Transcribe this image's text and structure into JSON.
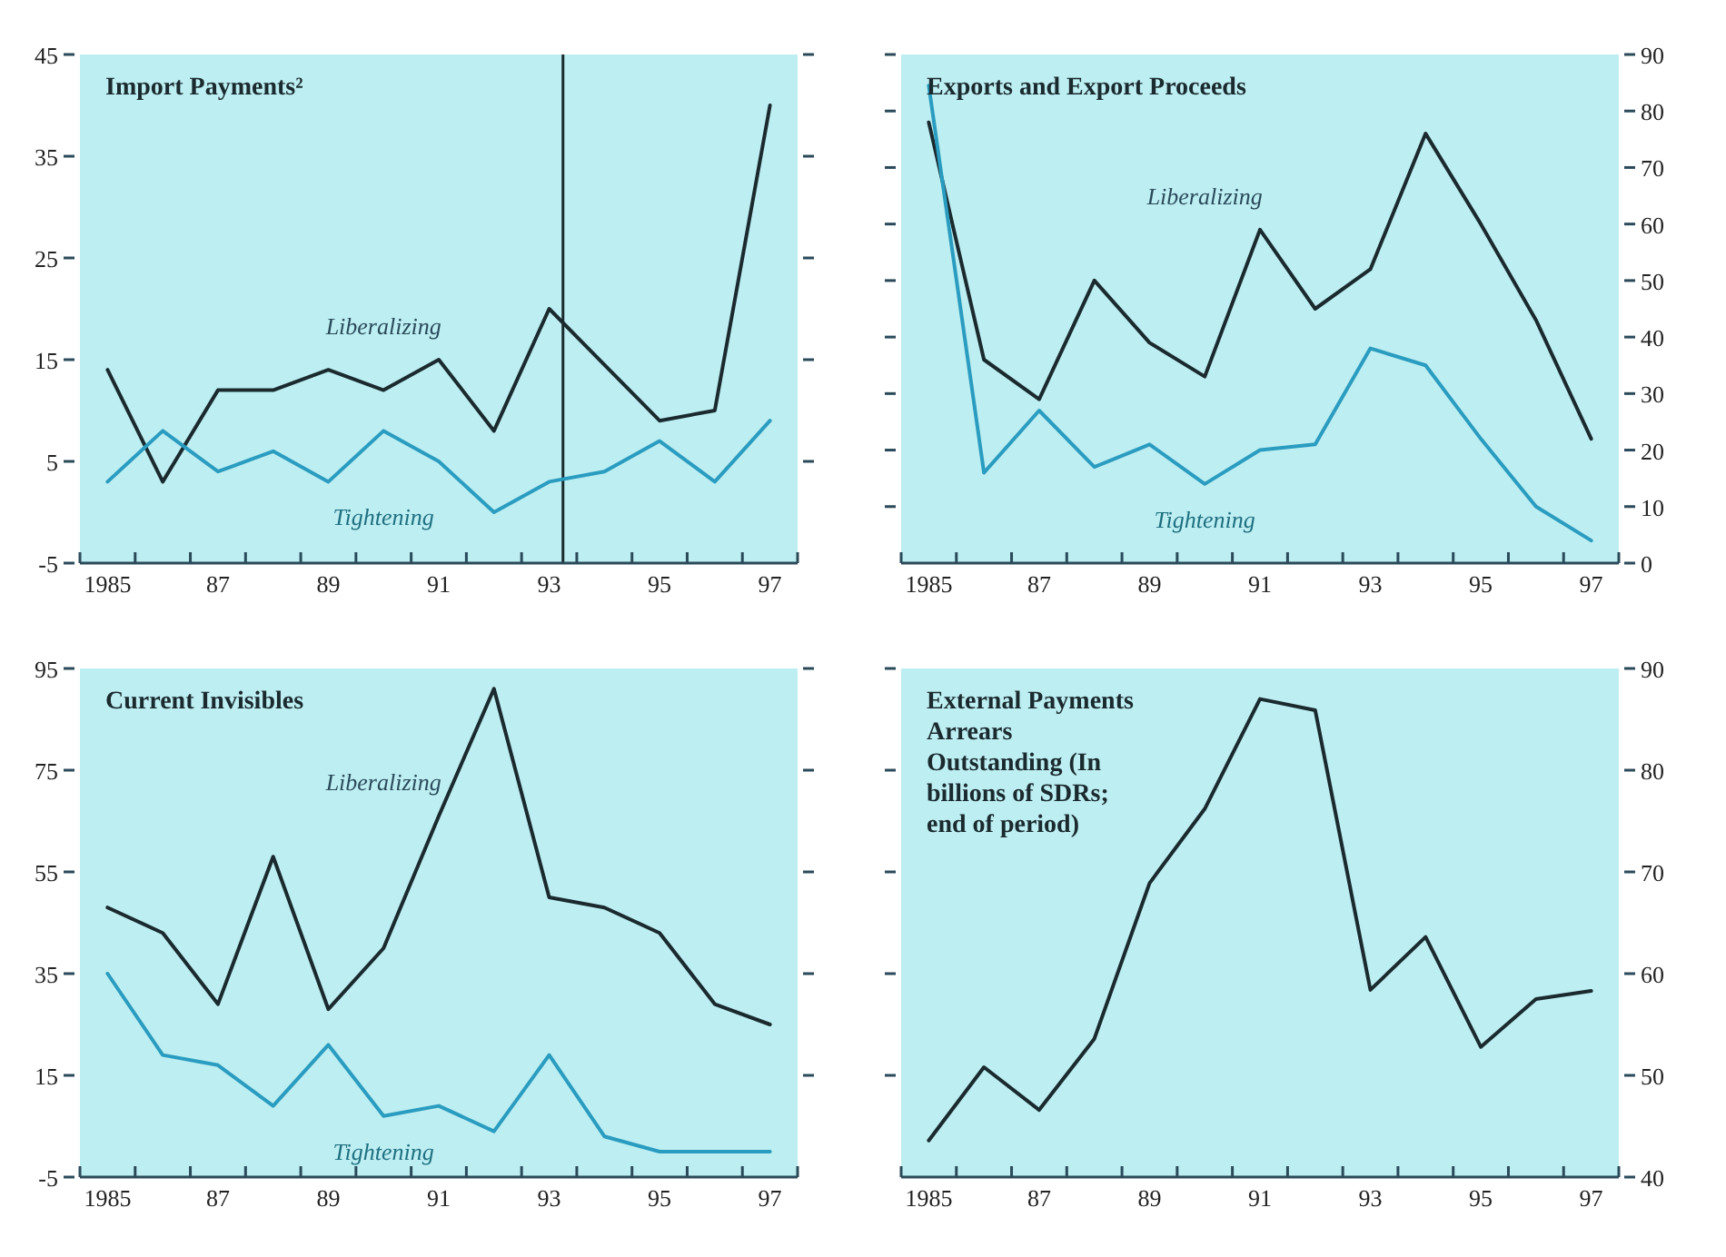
{
  "chart_data": [
    {
      "type": "line",
      "title": "Import Payments²",
      "x": [
        1985,
        1986,
        1987,
        1988,
        1989,
        1990,
        1991,
        1992,
        1993,
        1994,
        1995,
        1996,
        1997
      ],
      "xlim": [
        1984.5,
        1997.5
      ],
      "xticks": [
        {
          "value": 1984.5,
          "label": null
        },
        {
          "value": 1985.5,
          "label": null
        },
        {
          "value": 1986.5,
          "label": null
        },
        {
          "value": 1987.5,
          "label": null
        },
        {
          "value": 1988.5,
          "label": null
        },
        {
          "value": 1989.5,
          "label": null
        },
        {
          "value": 1990.5,
          "label": null
        },
        {
          "value": 1991.5,
          "label": null
        },
        {
          "value": 1992.5,
          "label": null
        },
        {
          "value": 1993.5,
          "label": null
        },
        {
          "value": 1994.5,
          "label": null
        },
        {
          "value": 1995.5,
          "label": null
        },
        {
          "value": 1996.5,
          "label": null
        },
        {
          "value": 1997.5,
          "label": null
        },
        {
          "value": 1985,
          "label": "1985"
        },
        {
          "value": 1987,
          "label": "87"
        },
        {
          "value": 1989,
          "label": "89"
        },
        {
          "value": 1991,
          "label": "91"
        },
        {
          "value": 1993,
          "label": "93"
        },
        {
          "value": 1995,
          "label": "95"
        },
        {
          "value": 1997,
          "label": "97"
        }
      ],
      "ylim": [
        -5,
        45
      ],
      "yticks": [
        -5,
        5,
        15,
        25,
        35,
        45
      ],
      "ref_lines": [
        {
          "axis": "x",
          "value": 1993.25,
          "color": "#1a2a2e"
        }
      ],
      "series": [
        {
          "name": "Liberalizing",
          "color": "#1a2a2e",
          "values": [
            14,
            3,
            12,
            12,
            14,
            12,
            15,
            8,
            20,
            14.5,
            9,
            10,
            40
          ]
        },
        {
          "name": "Tightening",
          "color": "#2a9cc0",
          "values": [
            3,
            8,
            4,
            6,
            3,
            8,
            5,
            0,
            3,
            4,
            7,
            3,
            9
          ]
        }
      ]
    },
    {
      "type": "line",
      "title": "Exports and Export Proceeds",
      "x": [
        1985,
        1986,
        1987,
        1988,
        1989,
        1990,
        1991,
        1992,
        1993,
        1994,
        1995,
        1996,
        1997
      ],
      "xlim": [
        1984.5,
        1997.5
      ],
      "xticks": [
        {
          "value": 1984.5,
          "label": null
        },
        {
          "value": 1985.5,
          "label": null
        },
        {
          "value": 1986.5,
          "label": null
        },
        {
          "value": 1987.5,
          "label": null
        },
        {
          "value": 1988.5,
          "label": null
        },
        {
          "value": 1989.5,
          "label": null
        },
        {
          "value": 1990.5,
          "label": null
        },
        {
          "value": 1991.5,
          "label": null
        },
        {
          "value": 1992.5,
          "label": null
        },
        {
          "value": 1993.5,
          "label": null
        },
        {
          "value": 1994.5,
          "label": null
        },
        {
          "value": 1995.5,
          "label": null
        },
        {
          "value": 1996.5,
          "label": null
        },
        {
          "value": 1997.5,
          "label": null
        },
        {
          "value": 1985,
          "label": "1985"
        },
        {
          "value": 1987,
          "label": "87"
        },
        {
          "value": 1989,
          "label": "89"
        },
        {
          "value": 1991,
          "label": "91"
        },
        {
          "value": 1993,
          "label": "93"
        },
        {
          "value": 1995,
          "label": "95"
        },
        {
          "value": 1997,
          "label": "97"
        }
      ],
      "y2lim": [
        0,
        90
      ],
      "y2ticks": [
        0,
        10,
        20,
        30,
        40,
        50,
        60,
        70,
        80,
        90
      ],
      "series": [
        {
          "name": "Liberalizing",
          "color": "#1a2a2e",
          "axis": "y2",
          "values": [
            78,
            36,
            29,
            50,
            39,
            33,
            59,
            45,
            52,
            76,
            60,
            43,
            22
          ]
        },
        {
          "name": "Tightening",
          "color": "#2a9cc0",
          "axis": "y2",
          "values": [
            84.5,
            16,
            27,
            17,
            21,
            14,
            20,
            21,
            38,
            35,
            22,
            10,
            4
          ]
        }
      ]
    },
    {
      "type": "line",
      "title": "Current Invisibles",
      "x": [
        1985,
        1986,
        1987,
        1988,
        1989,
        1990,
        1991,
        1992,
        1993,
        1994,
        1995,
        1996,
        1997
      ],
      "xlim": [
        1984.5,
        1997.5
      ],
      "xticks": [
        {
          "value": 1984.5,
          "label": null
        },
        {
          "value": 1985.5,
          "label": null
        },
        {
          "value": 1986.5,
          "label": null
        },
        {
          "value": 1987.5,
          "label": null
        },
        {
          "value": 1988.5,
          "label": null
        },
        {
          "value": 1989.5,
          "label": null
        },
        {
          "value": 1990.5,
          "label": null
        },
        {
          "value": 1991.5,
          "label": null
        },
        {
          "value": 1992.5,
          "label": null
        },
        {
          "value": 1993.5,
          "label": null
        },
        {
          "value": 1994.5,
          "label": null
        },
        {
          "value": 1995.5,
          "label": null
        },
        {
          "value": 1996.5,
          "label": null
        },
        {
          "value": 1997.5,
          "label": null
        },
        {
          "value": 1985,
          "label": "1985"
        },
        {
          "value": 1987,
          "label": "87"
        },
        {
          "value": 1989,
          "label": "89"
        },
        {
          "value": 1991,
          "label": "91"
        },
        {
          "value": 1993,
          "label": "93"
        },
        {
          "value": 1995,
          "label": "95"
        },
        {
          "value": 1997,
          "label": "97"
        }
      ],
      "ylim": [
        -5,
        95
      ],
      "yticks": [
        -5,
        15,
        35,
        55,
        75,
        95
      ],
      "series": [
        {
          "name": "Liberalizing",
          "color": "#1a2a2e",
          "values": [
            48,
            43,
            29,
            58,
            28,
            40,
            66,
            91,
            50,
            48,
            43,
            29,
            25
          ]
        },
        {
          "name": "Tightening",
          "color": "#2a9cc0",
          "values": [
            35,
            19,
            17,
            9,
            21,
            7,
            9,
            4,
            19,
            3,
            0,
            0,
            0
          ]
        }
      ]
    },
    {
      "type": "line",
      "title": "External Payments Arrears Outstanding (In billions of SDRs; end of period)",
      "x": [
        1985,
        1986,
        1987,
        1988,
        1989,
        1990,
        1991,
        1992,
        1993,
        1994,
        1995,
        1996,
        1997
      ],
      "xlim": [
        1984.5,
        1997.5
      ],
      "xticks": [
        {
          "value": 1984.5,
          "label": null
        },
        {
          "value": 1985.5,
          "label": null
        },
        {
          "value": 1986.5,
          "label": null
        },
        {
          "value": 1987.5,
          "label": null
        },
        {
          "value": 1988.5,
          "label": null
        },
        {
          "value": 1989.5,
          "label": null
        },
        {
          "value": 1990.5,
          "label": null
        },
        {
          "value": 1991.5,
          "label": null
        },
        {
          "value": 1992.5,
          "label": null
        },
        {
          "value": 1993.5,
          "label": null
        },
        {
          "value": 1994.5,
          "label": null
        },
        {
          "value": 1995.5,
          "label": null
        },
        {
          "value": 1996.5,
          "label": null
        },
        {
          "value": 1997.5,
          "label": null
        },
        {
          "value": 1985,
          "label": "1985"
        },
        {
          "value": 1987,
          "label": "87"
        },
        {
          "value": 1989,
          "label": "89"
        },
        {
          "value": 1991,
          "label": "91"
        },
        {
          "value": 1993,
          "label": "93"
        },
        {
          "value": 1995,
          "label": "95"
        },
        {
          "value": 1997,
          "label": "97"
        }
      ],
      "y2lim": [
        40,
        90
      ],
      "y2ticks": [
        40,
        50,
        60,
        70,
        80,
        90
      ],
      "series": [
        {
          "color": "#1a2a2e",
          "axis": "y2",
          "values": [
            43.6,
            50.8,
            46.6,
            53.6,
            68.9,
            76.2,
            87,
            85.9,
            58.4,
            63.6,
            52.8,
            57.5,
            58.3
          ]
        }
      ]
    }
  ]
}
